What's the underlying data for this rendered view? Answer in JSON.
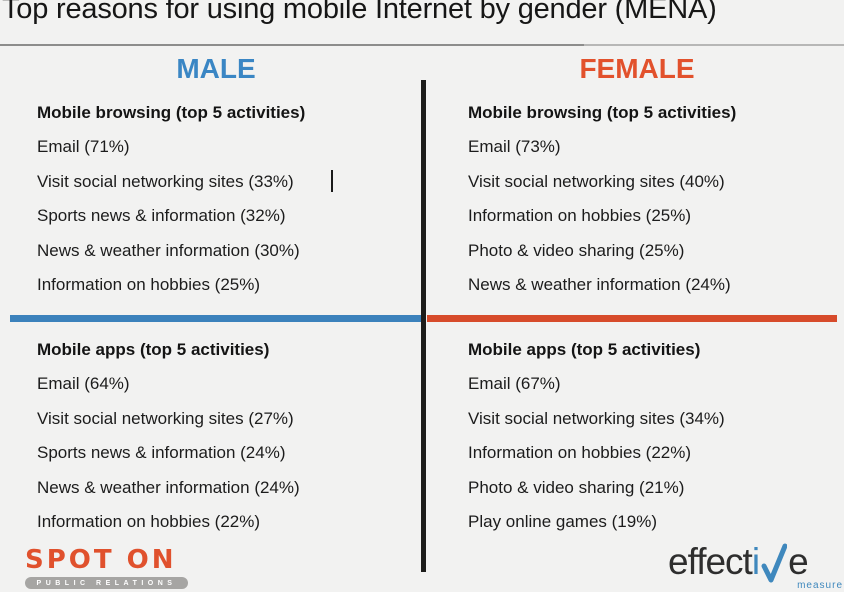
{
  "title": "Top reasons for using mobile Internet by gender (MENA)",
  "colors": {
    "background": "#f2f2f1",
    "male_accent": "#3a86c4",
    "male_bar": "#3c82bc",
    "female_accent": "#e2512c",
    "female_bar": "#d74b2b",
    "vertical_divider": "#1d1d1b"
  },
  "columns": {
    "male": {
      "header": "MALE",
      "browsing": {
        "heading": "Mobile browsing (top 5 activities)",
        "items": [
          "Email (71%)",
          "Visit social networking sites (33%)",
          "Sports news & information (32%)",
          "News & weather information (30%)",
          "Information on hobbies (25%)"
        ]
      },
      "apps": {
        "heading": "Mobile apps (top 5 activities)",
        "items": [
          "Email (64%)",
          "Visit social networking sites (27%)",
          "Sports news & information (24%)",
          "News & weather information (24%)",
          "Information on hobbies (22%)"
        ]
      }
    },
    "female": {
      "header": "FEMALE",
      "browsing": {
        "heading": "Mobile browsing (top 5 activities)",
        "items": [
          "Email (73%)",
          "Visit social networking sites (40%)",
          "Information on hobbies (25%)",
          "Photo & video sharing (25%)",
          "News & weather information (24%)"
        ]
      },
      "apps": {
        "heading": "Mobile apps (top 5 activities)",
        "items": [
          "Email (67%)",
          "Visit social networking sites (34%)",
          "Information on hobbies (22%)",
          "Photo & video sharing (21%)",
          "Play online games (19%)"
        ]
      }
    }
  },
  "footer": {
    "spot_on": {
      "name": "SPOT ON",
      "tagline": "PUBLIC RELATIONS"
    },
    "effective_measure": {
      "part1": "effect",
      "part2": "i",
      "part3": "e",
      "sub": "measure"
    }
  }
}
